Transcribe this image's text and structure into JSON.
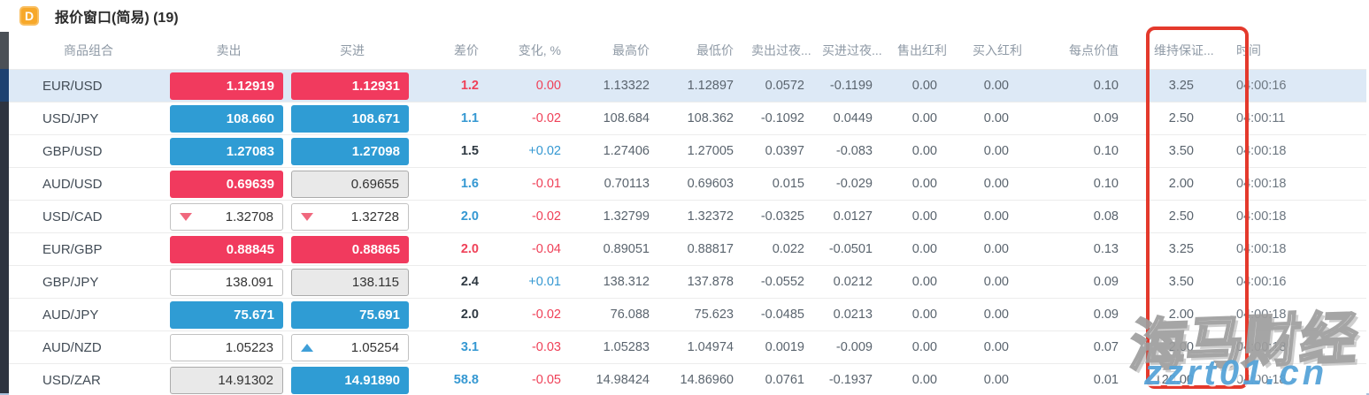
{
  "window": {
    "icon_letter": "D",
    "title": "报价窗口(简易) (19)"
  },
  "columns": [
    {
      "key": "symbol",
      "label": "商品组合"
    },
    {
      "key": "sell",
      "label": "卖出"
    },
    {
      "key": "buy",
      "label": "买进"
    },
    {
      "key": "spread",
      "label": "差价"
    },
    {
      "key": "change",
      "label": "变化, %"
    },
    {
      "key": "high",
      "label": "最高价"
    },
    {
      "key": "low",
      "label": "最低价"
    },
    {
      "key": "sell_overnight",
      "label": "卖出过夜..."
    },
    {
      "key": "buy_overnight",
      "label": "买进过夜..."
    },
    {
      "key": "sell_dividend",
      "label": "售出红利"
    },
    {
      "key": "buy_dividend",
      "label": "买入红利"
    },
    {
      "key": "point_value",
      "label": "每点价值"
    },
    {
      "key": "margin",
      "label": "维持保证..."
    },
    {
      "key": "time",
      "label": "时间"
    }
  ],
  "rows": [
    {
      "symbol": "EUR/USD",
      "selected": true,
      "sell": {
        "value": "1.12919",
        "style": "red",
        "arrow": null
      },
      "buy": {
        "value": "1.12931",
        "style": "red",
        "arrow": null
      },
      "spread": {
        "value": "1.2",
        "color": "red"
      },
      "change": {
        "value": "0.00",
        "color": "red"
      },
      "high": "1.13322",
      "low": "1.12897",
      "sell_overnight": "0.0572",
      "buy_overnight": "-0.1199",
      "sell_dividend": "0.00",
      "buy_dividend": "0.00",
      "point_value": "0.10",
      "margin": "3.25",
      "time": "04:00:16"
    },
    {
      "symbol": "USD/JPY",
      "selected": false,
      "sell": {
        "value": "108.660",
        "style": "blue",
        "arrow": null
      },
      "buy": {
        "value": "108.671",
        "style": "blue",
        "arrow": null
      },
      "spread": {
        "value": "1.1",
        "color": "blue"
      },
      "change": {
        "value": "-0.02",
        "color": "red"
      },
      "high": "108.684",
      "low": "108.362",
      "sell_overnight": "-0.1092",
      "buy_overnight": "0.0449",
      "sell_dividend": "0.00",
      "buy_dividend": "0.00",
      "point_value": "0.09",
      "margin": "2.50",
      "time": "04:00:11"
    },
    {
      "symbol": "GBP/USD",
      "selected": false,
      "sell": {
        "value": "1.27083",
        "style": "blue",
        "arrow": null
      },
      "buy": {
        "value": "1.27098",
        "style": "blue",
        "arrow": null
      },
      "spread": {
        "value": "1.5",
        "color": "dark"
      },
      "change": {
        "value": "+0.02",
        "color": "blue"
      },
      "high": "1.27406",
      "low": "1.27005",
      "sell_overnight": "0.0397",
      "buy_overnight": "-0.083",
      "sell_dividend": "0.00",
      "buy_dividend": "0.00",
      "point_value": "0.10",
      "margin": "3.50",
      "time": "04:00:18"
    },
    {
      "symbol": "AUD/USD",
      "selected": false,
      "sell": {
        "value": "0.69639",
        "style": "red",
        "arrow": null
      },
      "buy": {
        "value": "0.69655",
        "style": "gray",
        "arrow": null
      },
      "spread": {
        "value": "1.6",
        "color": "blue"
      },
      "change": {
        "value": "-0.01",
        "color": "red"
      },
      "high": "0.70113",
      "low": "0.69603",
      "sell_overnight": "0.015",
      "buy_overnight": "-0.029",
      "sell_dividend": "0.00",
      "buy_dividend": "0.00",
      "point_value": "0.10",
      "margin": "2.00",
      "time": "04:00:18"
    },
    {
      "symbol": "USD/CAD",
      "selected": false,
      "sell": {
        "value": "1.32708",
        "style": "white",
        "arrow": "down"
      },
      "buy": {
        "value": "1.32728",
        "style": "white",
        "arrow": "down"
      },
      "spread": {
        "value": "2.0",
        "color": "blue"
      },
      "change": {
        "value": "-0.02",
        "color": "red"
      },
      "high": "1.32799",
      "low": "1.32372",
      "sell_overnight": "-0.0325",
      "buy_overnight": "0.0127",
      "sell_dividend": "0.00",
      "buy_dividend": "0.00",
      "point_value": "0.08",
      "margin": "2.50",
      "time": "04:00:18"
    },
    {
      "symbol": "EUR/GBP",
      "selected": false,
      "sell": {
        "value": "0.88845",
        "style": "red",
        "arrow": null
      },
      "buy": {
        "value": "0.88865",
        "style": "red",
        "arrow": null
      },
      "spread": {
        "value": "2.0",
        "color": "red"
      },
      "change": {
        "value": "-0.04",
        "color": "red"
      },
      "high": "0.89051",
      "low": "0.88817",
      "sell_overnight": "0.022",
      "buy_overnight": "-0.0501",
      "sell_dividend": "0.00",
      "buy_dividend": "0.00",
      "point_value": "0.13",
      "margin": "3.25",
      "time": "04:00:18"
    },
    {
      "symbol": "GBP/JPY",
      "selected": false,
      "sell": {
        "value": "138.091",
        "style": "white",
        "arrow": null
      },
      "buy": {
        "value": "138.115",
        "style": "gray",
        "arrow": null
      },
      "spread": {
        "value": "2.4",
        "color": "dark"
      },
      "change": {
        "value": "+0.01",
        "color": "blue"
      },
      "high": "138.312",
      "low": "137.878",
      "sell_overnight": "-0.0552",
      "buy_overnight": "0.0212",
      "sell_dividend": "0.00",
      "buy_dividend": "0.00",
      "point_value": "0.09",
      "margin": "3.50",
      "time": "04:00:16"
    },
    {
      "symbol": "AUD/JPY",
      "selected": false,
      "sell": {
        "value": "75.671",
        "style": "blue",
        "arrow": null
      },
      "buy": {
        "value": "75.691",
        "style": "blue",
        "arrow": null
      },
      "spread": {
        "value": "2.0",
        "color": "dark"
      },
      "change": {
        "value": "-0.02",
        "color": "red"
      },
      "high": "76.088",
      "low": "75.623",
      "sell_overnight": "-0.0485",
      "buy_overnight": "0.0213",
      "sell_dividend": "0.00",
      "buy_dividend": "0.00",
      "point_value": "0.09",
      "margin": "2.00",
      "time": "04:00:18"
    },
    {
      "symbol": "AUD/NZD",
      "selected": false,
      "sell": {
        "value": "1.05223",
        "style": "white",
        "arrow": null
      },
      "buy": {
        "value": "1.05254",
        "style": "white",
        "arrow": "up"
      },
      "spread": {
        "value": "3.1",
        "color": "blue"
      },
      "change": {
        "value": "-0.03",
        "color": "red"
      },
      "high": "1.05283",
      "low": "1.04974",
      "sell_overnight": "0.0019",
      "buy_overnight": "-0.009",
      "sell_dividend": "0.00",
      "buy_dividend": "0.00",
      "point_value": "0.07",
      "margin": "2.00",
      "time": "04:00:18"
    },
    {
      "symbol": "USD/ZAR",
      "selected": false,
      "sell": {
        "value": "14.91302",
        "style": "gray",
        "arrow": null
      },
      "buy": {
        "value": "14.91890",
        "style": "blue",
        "arrow": null
      },
      "spread": {
        "value": "58.8",
        "color": "blue"
      },
      "change": {
        "value": "-0.05",
        "color": "red"
      },
      "high": "14.98424",
      "low": "14.86960",
      "sell_overnight": "0.0761",
      "buy_overnight": "-0.1937",
      "sell_dividend": "0.00",
      "buy_dividend": "0.00",
      "point_value": "0.01",
      "margin": "120.00",
      "time": "04:00:18"
    }
  ],
  "watermark": {
    "cn_text": "海马财经",
    "url_text": "zzrt01.cn"
  },
  "colors": {
    "price_up_blue": "#2f9cd4",
    "price_down_red": "#f13a5e",
    "text_blue": "#3598d2",
    "text_red": "#ef4158",
    "selected_row_bg": "#dde9f6",
    "annotation_red": "#e4392c",
    "watermark_blue": "#57a4d9",
    "icon_orange": "#f7a82a"
  }
}
